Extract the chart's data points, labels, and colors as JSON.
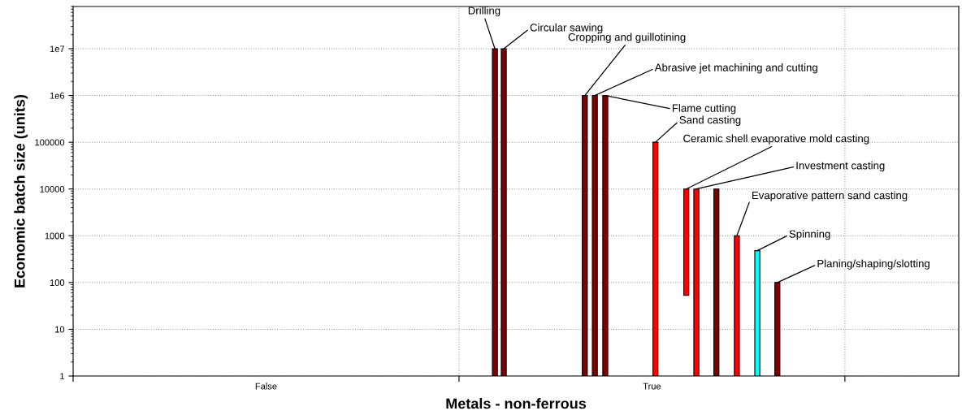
{
  "chart_data": {
    "type": "bar",
    "xlabel": "Metals - non-ferrous",
    "ylabel": "Economic batch size (units)",
    "categories": [
      "False",
      "True"
    ],
    "series": [
      {
        "name": "Drilling",
        "color": "#800000",
        "values": [
          null,
          9999999
        ],
        "base": [
          null,
          1
        ]
      },
      {
        "name": "Circular sawing",
        "color": "#800000",
        "values": [
          null,
          9999999
        ],
        "base": [
          null,
          1
        ]
      },
      {
        "name": "Cropping and guillotining",
        "color": "#800000",
        "values": [
          null,
          999999
        ],
        "base": [
          null,
          1
        ]
      },
      {
        "name": "Abrasive jet machining and cutting",
        "color": "#800000",
        "values": [
          null,
          999999
        ],
        "base": [
          null,
          1
        ]
      },
      {
        "name": "Flame cutting",
        "color": "#800000",
        "values": [
          null,
          999999
        ],
        "base": [
          null,
          1
        ]
      },
      {
        "name": "Sand casting",
        "color": "#ff0000",
        "values": [
          null,
          99999
        ],
        "base": [
          null,
          1
        ]
      },
      {
        "name": "Ceramic shell evaporative mold casting",
        "color": "#ff0000",
        "values": [
          null,
          9947
        ],
        "base": [
          null,
          53
        ]
      },
      {
        "name": "Investment casting",
        "color": "#ff0000",
        "values": [
          null,
          9999
        ],
        "base": [
          null,
          1
        ]
      },
      {
        "color": "#800000",
        "values": [
          null,
          9999
        ],
        "base": [
          null,
          1
        ]
      },
      {
        "name": "Evaporative pattern sand casting",
        "color": "#ff0000",
        "values": [
          null,
          999
        ],
        "base": [
          null,
          1
        ]
      },
      {
        "name": "Spinning",
        "color": "#00ffff",
        "values": [
          null,
          479
        ],
        "base": [
          null,
          1
        ]
      },
      {
        "name": "Planing/shaping/slotting",
        "color": "#800000",
        "values": [
          null,
          99
        ],
        "base": [
          null,
          1
        ]
      }
    ],
    "log": "y",
    "ylim": [
      1,
      80000000
    ],
    "yticks": [
      1,
      10,
      100,
      1000,
      10000,
      100000,
      {
        "value": 1000000,
        "label": "1e6"
      },
      {
        "value": 10000000,
        "label": "1e7"
      }
    ],
    "grid": true
  }
}
